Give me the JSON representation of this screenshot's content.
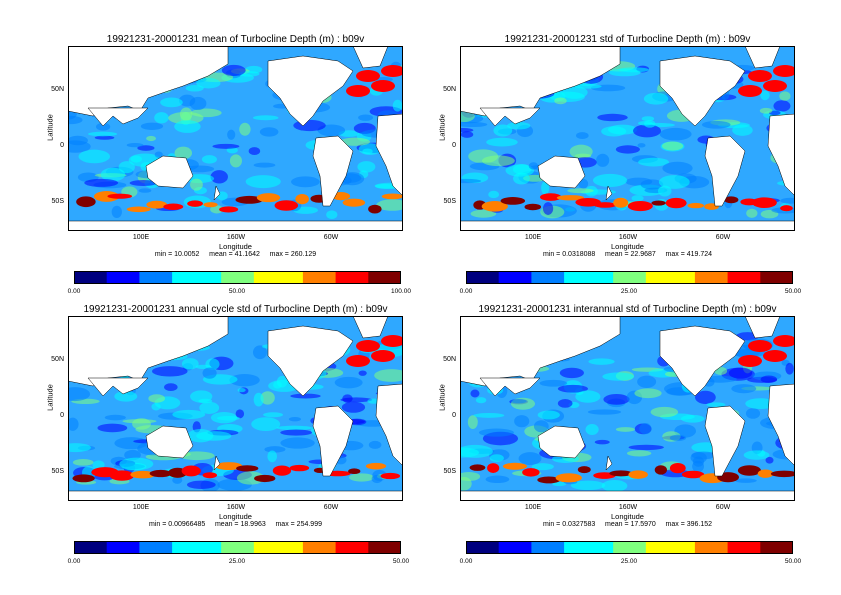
{
  "panels": [
    {
      "title": "19921231-20001231 mean of Turbocline Depth (m) : b09v",
      "xlabel": "Longitude",
      "ylabel": "Latitude",
      "stats": "min = 10.0052     mean = 41.1642     max = 260.129",
      "cbar_min": "0.00",
      "cbar_mid": "50.00",
      "cbar_max": "100.00"
    },
    {
      "title": "19921231-20001231 std of Turbocline Depth (m) : b09v",
      "xlabel": "Longitude",
      "ylabel": "Latitude",
      "stats": "min = 0.0318088     mean = 22.9687     max = 419.724",
      "cbar_min": "0.00",
      "cbar_mid": "25.00",
      "cbar_max": "50.00"
    },
    {
      "title": "19921231-20001231 annual cycle std of Turbocline Depth (m) : b09v",
      "xlabel": "Longitude",
      "ylabel": "Latitude",
      "stats": "min = 0.00966485     mean = 18.9963     max = 254.999",
      "cbar_min": "0.00",
      "cbar_mid": "25.00",
      "cbar_max": "50.00"
    },
    {
      "title": "19921231-20001231 interannual std of Turbocline Depth (m) : b09v",
      "xlabel": "Longitude",
      "ylabel": "Latitude",
      "stats": "min = 0.0327583     mean = 17.5970     max = 396.152",
      "cbar_min": "0.00",
      "cbar_mid": "25.00",
      "cbar_max": "50.00"
    }
  ],
  "lat_ticks": [
    "50N",
    "0",
    "50S"
  ],
  "lon_ticks": [
    "100E",
    "160W",
    "60W"
  ],
  "colors": {
    "colormap": [
      "#00007f",
      "#0000ff",
      "#007fff",
      "#00ffff",
      "#7fff7f",
      "#ffff00",
      "#ff7f00",
      "#ff0000",
      "#7f0000"
    ],
    "land": "#ffffff"
  }
}
